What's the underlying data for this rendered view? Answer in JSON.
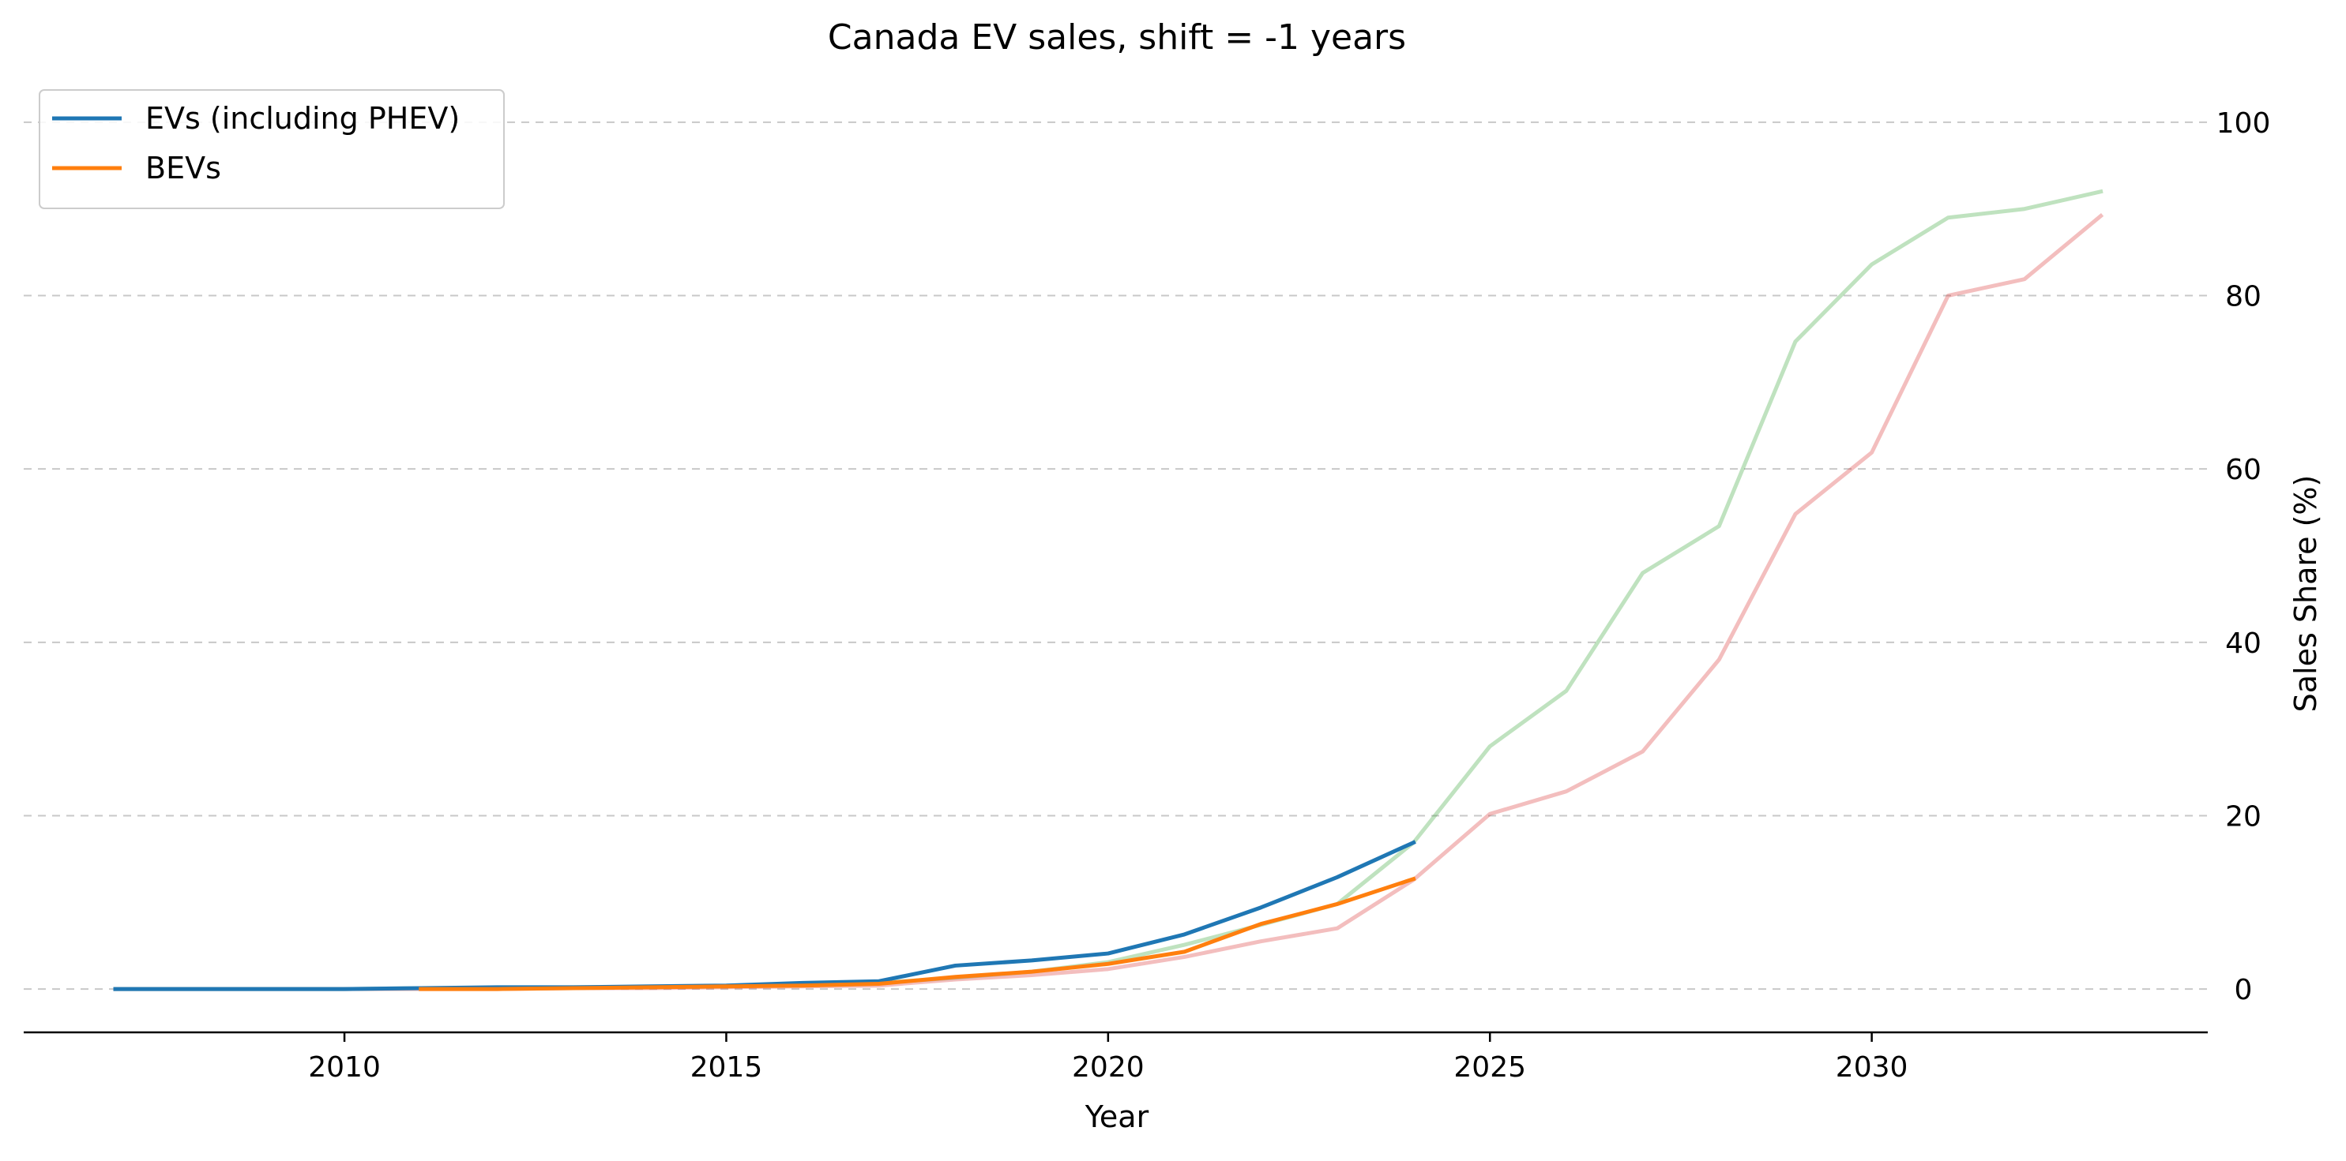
{
  "chart_data": {
    "type": "line",
    "title": "Canada EV sales, shift = -1 years",
    "xlabel": "Year",
    "ylabel": "Sales Share (%)",
    "xlim": [
      2005.8,
      2034.4
    ],
    "ylim": [
      -5,
      105
    ],
    "x_ticks": [
      2010,
      2015,
      2020,
      2025,
      2030
    ],
    "y_ticks": [
      0,
      20,
      40,
      60,
      80,
      100
    ],
    "y_axis_side": "right",
    "grid": "horizontal dashed",
    "legend_position": "top-left",
    "series": [
      {
        "name": "EVs (including PHEV)",
        "color": "#1f77b4",
        "opacity": 1,
        "in_legend": true,
        "x": [
          2007,
          2008,
          2009,
          2010,
          2011,
          2012,
          2013,
          2014,
          2015,
          2016,
          2017,
          2018,
          2019,
          2020,
          2021,
          2022,
          2023,
          2024
        ],
        "y": [
          0.0,
          0.0,
          0.0,
          0.0,
          0.1,
          0.2,
          0.2,
          0.3,
          0.4,
          0.7,
          0.9,
          2.7,
          3.3,
          4.1,
          6.3,
          9.4,
          12.9,
          16.9
        ]
      },
      {
        "name": "BEVs",
        "color": "#ff7f0e",
        "opacity": 1,
        "in_legend": true,
        "x": [
          2011,
          2012,
          2013,
          2014,
          2015,
          2016,
          2017,
          2018,
          2019,
          2020,
          2021,
          2022,
          2023,
          2024
        ],
        "y": [
          0.0,
          0.0,
          0.1,
          0.2,
          0.3,
          0.4,
          0.6,
          1.4,
          2.0,
          2.9,
          4.3,
          7.5,
          9.8,
          12.7
        ]
      },
      {
        "name": "",
        "color": "#2ca02c",
        "opacity": 0.3,
        "in_legend": false,
        "x": [
          2007,
          2008,
          2009,
          2010,
          2011,
          2012,
          2013,
          2014,
          2015,
          2016,
          2017,
          2018,
          2019,
          2020,
          2021,
          2022,
          2023,
          2024,
          2025,
          2026,
          2027,
          2028,
          2029,
          2030,
          2031,
          2032,
          2033
        ],
        "y": [
          0.0,
          0.0,
          0.0,
          0.0,
          0.1,
          0.1,
          0.2,
          0.2,
          0.3,
          0.5,
          0.7,
          1.3,
          2.0,
          3.1,
          5.1,
          7.4,
          9.8,
          16.9,
          28.0,
          34.4,
          48.0,
          53.4,
          74.7,
          83.6,
          89.0,
          90.0,
          92.0
        ]
      },
      {
        "name": "",
        "color": "#d62728",
        "opacity": 0.3,
        "in_legend": false,
        "x": [
          2007,
          2008,
          2009,
          2010,
          2011,
          2012,
          2013,
          2014,
          2015,
          2016,
          2017,
          2018,
          2019,
          2020,
          2021,
          2022,
          2023,
          2024,
          2025,
          2026,
          2027,
          2028,
          2029,
          2030,
          2031,
          2032,
          2033
        ],
        "y": [
          0.0,
          0.0,
          0.0,
          0.0,
          0.0,
          0.0,
          0.1,
          0.1,
          0.2,
          0.3,
          0.4,
          1.1,
          1.6,
          2.3,
          3.7,
          5.5,
          7.0,
          12.6,
          20.2,
          22.8,
          27.4,
          38.0,
          54.8,
          61.9,
          80.0,
          81.9,
          89.2
        ]
      }
    ]
  }
}
